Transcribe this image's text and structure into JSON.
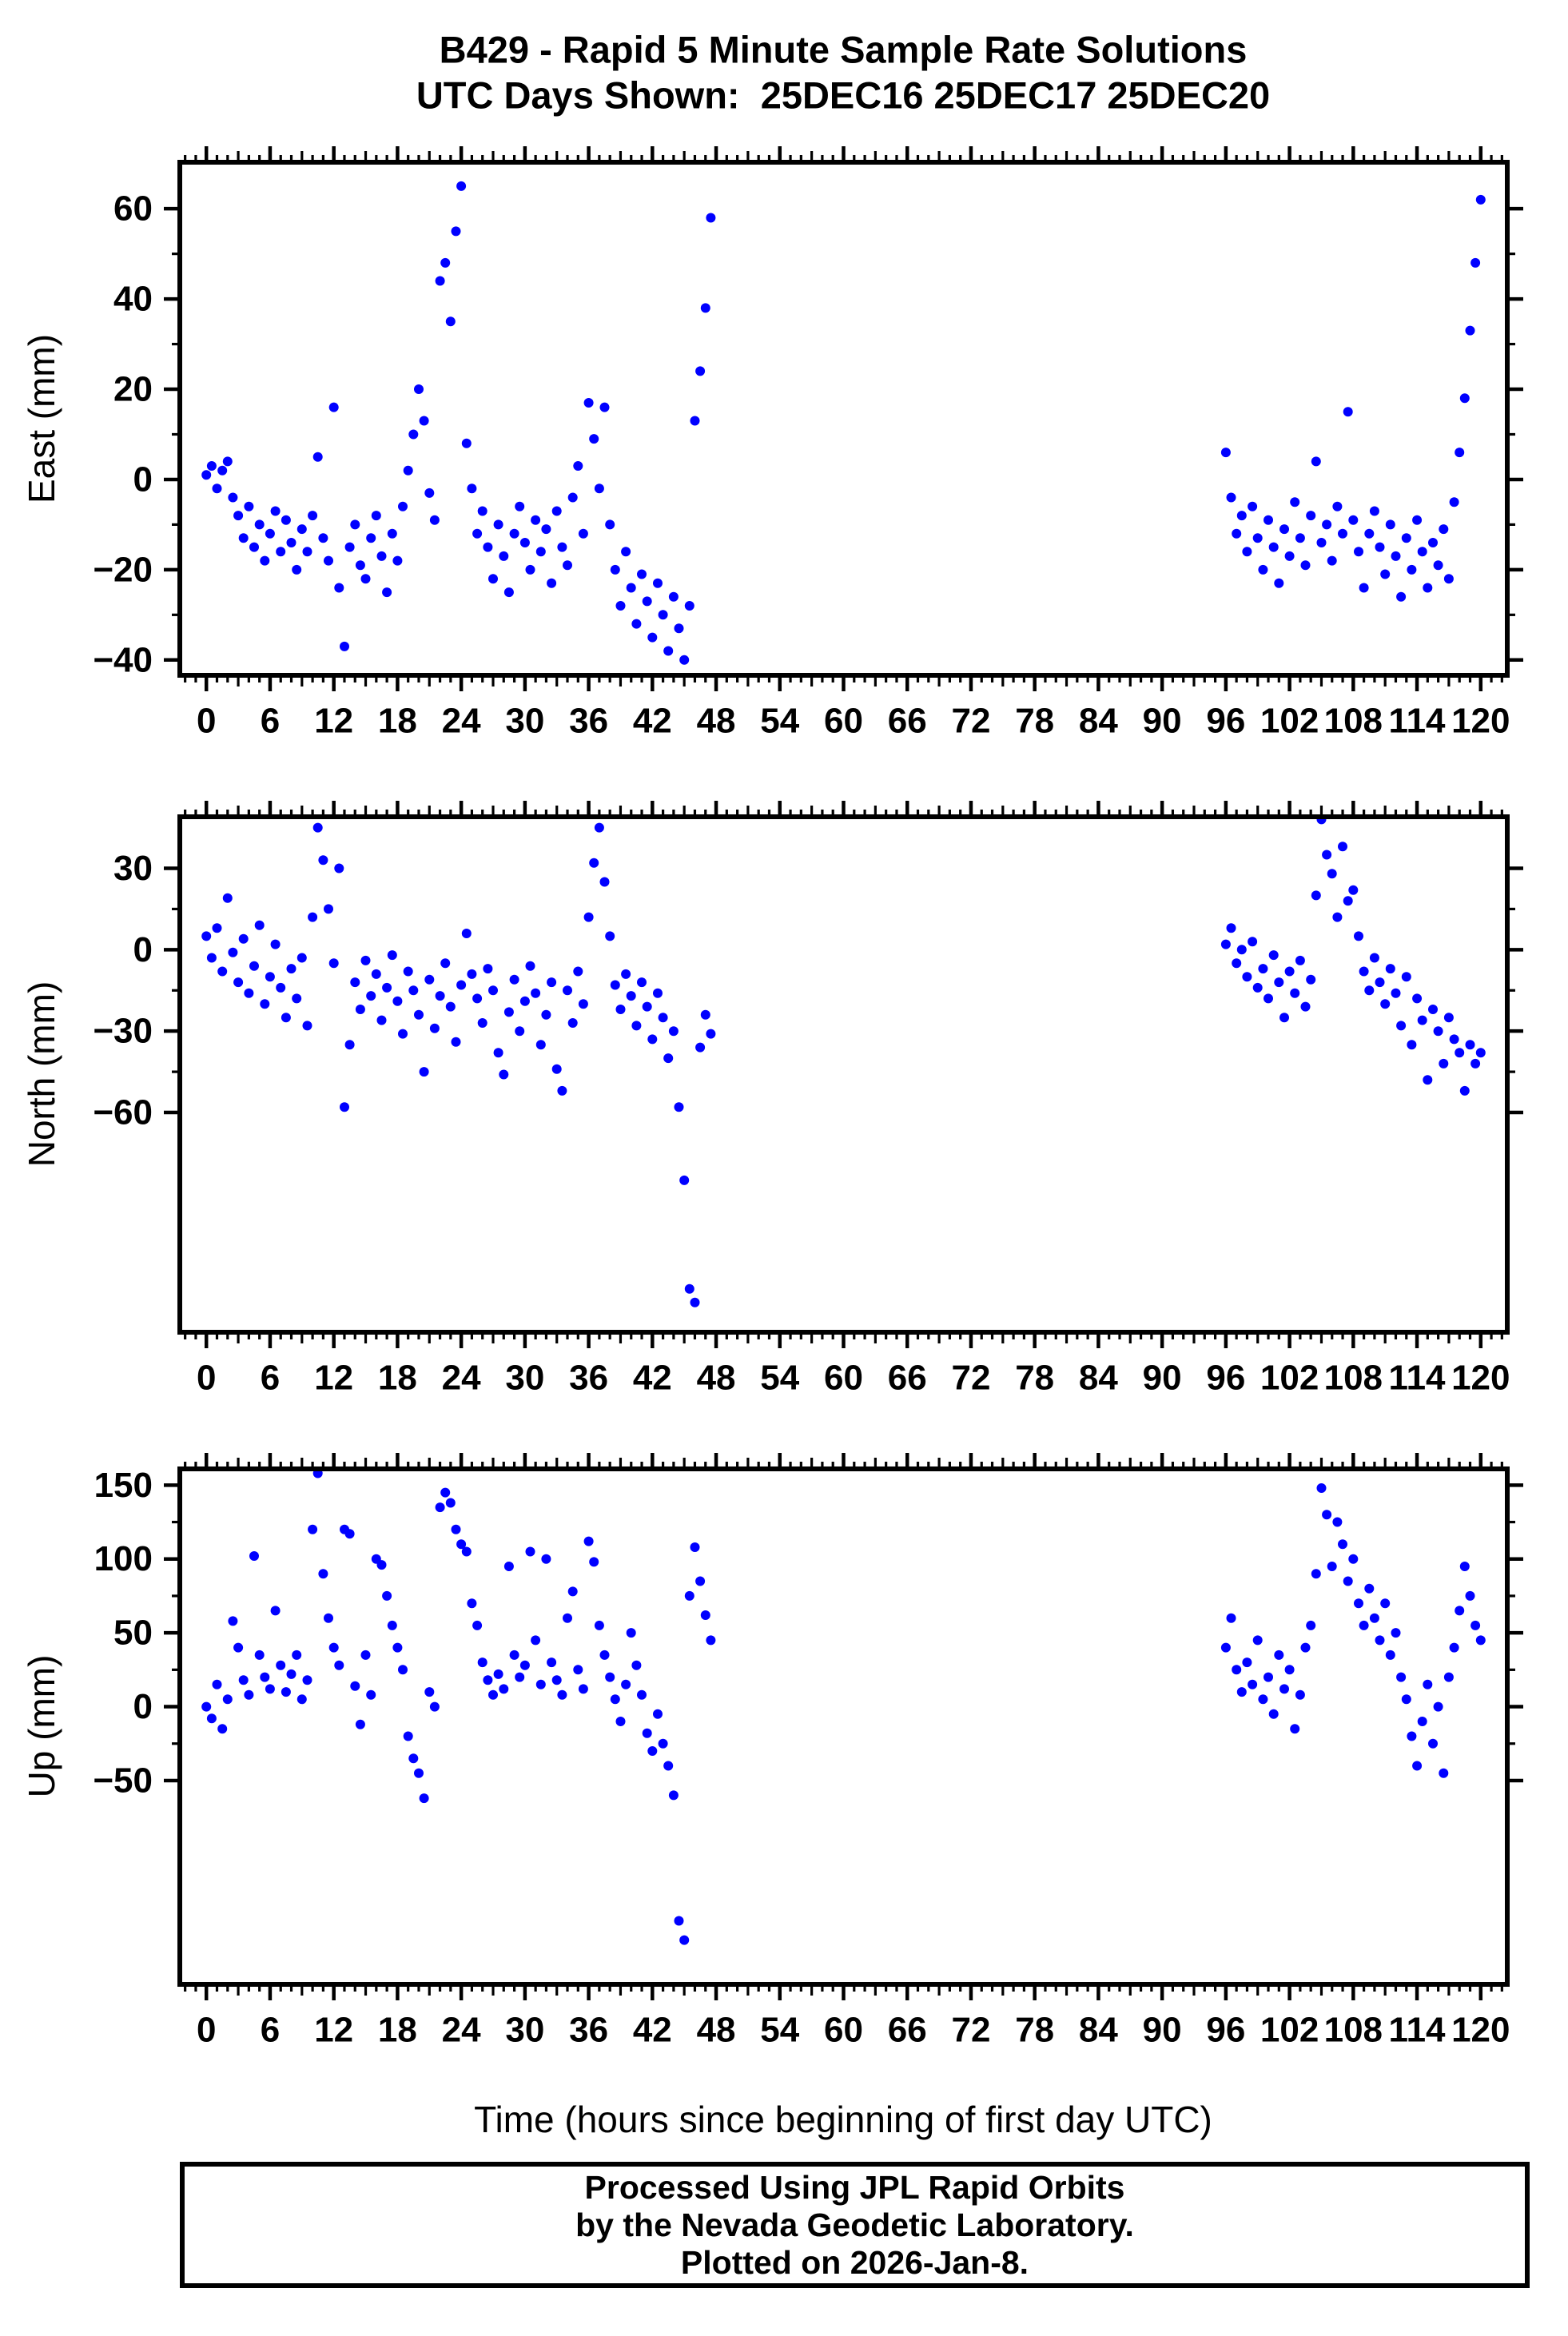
{
  "title": {
    "line1": "B429 - Rapid 5 Minute Sample Rate Solutions",
    "line2": "UTC Days Shown:  25DEC16 25DEC17 25DEC20"
  },
  "footer_box": {
    "line1": "Processed Using JPL Rapid Orbits",
    "line2": "by the Nevada Geodetic Laboratory.",
    "line3": "Plotted on 2026-Jan-8."
  },
  "chart_data": {
    "type": "scatter",
    "marker_color": "#0000ff",
    "axis_color": "#000000",
    "background_color": "#ffffff",
    "xlabel": "Time (hours since beginning of first day UTC)",
    "x_range": [
      -2.5,
      122.5
    ],
    "x_ticks": {
      "label_start": 0,
      "label_end": 120,
      "label_step": 6,
      "medium_step": 3,
      "minor_step": 1
    },
    "grid": "off",
    "legend": "none",
    "panels": [
      {
        "id": "east",
        "ylabel": "East (mm)",
        "y_range": [
          -43.4,
          70.3
        ],
        "y_label_min": -40,
        "y_label_max": 60,
        "y_label_step": 20,
        "y_minor_step": 10,
        "segments": [
          {
            "x0": 0,
            "dx": 0.5,
            "y": [
              1,
              3,
              -2,
              2,
              4,
              -4,
              -8,
              -13,
              -6,
              -15,
              -10,
              -18,
              -12,
              -7,
              -16,
              -9,
              -14,
              -20,
              -11,
              -16,
              -8,
              5,
              -13,
              -18,
              16,
              -24,
              -37,
              -15,
              -10,
              -19,
              -22,
              -13,
              -8,
              -17,
              -25,
              -12,
              -18,
              -6,
              2,
              10,
              20,
              13,
              -3,
              -9,
              44,
              48,
              35,
              55,
              65,
              8,
              -2,
              -12,
              -7,
              -15,
              -22,
              -10,
              -17,
              -25,
              -12,
              -6,
              -14,
              -20,
              -9,
              -16,
              -11,
              -23,
              -7,
              -15,
              -19,
              -4,
              3,
              -12,
              17,
              9,
              -2,
              16,
              -10,
              -20,
              -28,
              -16,
              -24,
              -32,
              -21,
              -27,
              -35,
              -23,
              -30,
              -38,
              -26,
              -33,
              -40,
              -28,
              13,
              24,
              38,
              58
            ]
          },
          {
            "x0": 96,
            "dx": 0.5,
            "y": [
              6,
              -4,
              -12,
              -8,
              -16,
              -6,
              -13,
              -20,
              -9,
              -15,
              -23,
              -11,
              -17,
              -5,
              -13,
              -19,
              -8,
              4,
              -14,
              -10,
              -18,
              -6,
              -12,
              15,
              -9,
              -16,
              -24,
              -12,
              -7,
              -15,
              -21,
              -10,
              -17,
              -26,
              -13,
              -20,
              -9,
              -16,
              -24,
              -14,
              -19,
              -11,
              -22,
              -5,
              6,
              18,
              33,
              48,
              62
            ]
          }
        ]
      },
      {
        "id": "north",
        "ylabel": "North (mm)",
        "y_range": [
          -141,
          49
        ],
        "y_label_min": -60,
        "y_label_max": 30,
        "y_label_step": 30,
        "y_minor_step": 15,
        "segments": [
          {
            "x0": 0,
            "dx": 0.5,
            "y": [
              5,
              -3,
              8,
              -8,
              19,
              -1,
              -12,
              4,
              -16,
              -6,
              9,
              -20,
              -10,
              2,
              -14,
              -25,
              -7,
              -18,
              -3,
              -28,
              12,
              45,
              33,
              15,
              -5,
              30,
              -58,
              -35,
              -12,
              -22,
              -4,
              -17,
              -9,
              -26,
              -14,
              -2,
              -19,
              -31,
              -8,
              -15,
              -24,
              -45,
              -11,
              -29,
              -17,
              -5,
              -21,
              -34,
              -13,
              6,
              -9,
              -18,
              -27,
              -7,
              -15,
              -38,
              -46,
              -23,
              -11,
              -30,
              -19,
              -6,
              -16,
              -35,
              -24,
              -12,
              -44,
              -52,
              -15,
              -27,
              -8,
              -20,
              12,
              32,
              45,
              25,
              5,
              -13,
              -22,
              -9,
              -17,
              -28,
              -12,
              -21,
              -33,
              -16,
              -25,
              -40,
              -30,
              -58,
              -85,
              -125,
              -130,
              -36,
              -24,
              -31
            ]
          },
          {
            "x0": 96,
            "dx": 0.5,
            "y": [
              2,
              8,
              -5,
              0,
              -10,
              3,
              -14,
              -7,
              -18,
              -2,
              -12,
              -25,
              -8,
              -16,
              -4,
              -21,
              -11,
              20,
              48,
              35,
              28,
              12,
              38,
              18,
              22,
              5,
              -8,
              -15,
              -3,
              -12,
              -20,
              -7,
              -16,
              -28,
              -10,
              -35,
              -18,
              -26,
              -48,
              -22,
              -30,
              -42,
              -25,
              -33,
              -38,
              -52,
              -35,
              -42,
              -38
            ]
          }
        ]
      },
      {
        "id": "up",
        "ylabel": "Up (mm)",
        "y_range": [
          -188,
          161
        ],
        "y_label_min": -50,
        "y_label_max": 150,
        "y_label_step": 50,
        "y_minor_step": 25,
        "segments": [
          {
            "x0": 0,
            "dx": 0.5,
            "y": [
              0,
              -8,
              15,
              -15,
              5,
              58,
              40,
              18,
              8,
              102,
              35,
              20,
              12,
              65,
              28,
              10,
              22,
              35,
              5,
              18,
              120,
              158,
              90,
              60,
              40,
              28,
              120,
              117,
              14,
              -12,
              35,
              8,
              100,
              96,
              75,
              55,
              40,
              25,
              -20,
              -35,
              -45,
              -62,
              10,
              0,
              135,
              145,
              138,
              120,
              110,
              105,
              70,
              55,
              30,
              18,
              8,
              22,
              12,
              95,
              35,
              20,
              28,
              105,
              45,
              15,
              100,
              30,
              18,
              8,
              60,
              78,
              25,
              12,
              112,
              98,
              55,
              35,
              20,
              5,
              -10,
              15,
              50,
              28,
              8,
              -18,
              -30,
              -5,
              -25,
              -40,
              -60,
              -145,
              -158,
              75,
              108,
              85,
              62,
              45
            ]
          },
          {
            "x0": 96,
            "dx": 0.5,
            "y": [
              40,
              60,
              25,
              10,
              30,
              15,
              45,
              5,
              20,
              -5,
              35,
              12,
              25,
              -15,
              8,
              40,
              55,
              90,
              148,
              130,
              95,
              125,
              110,
              85,
              100,
              70,
              55,
              80,
              60,
              45,
              70,
              35,
              50,
              20,
              5,
              -20,
              -40,
              -10,
              15,
              -25,
              0,
              -45,
              20,
              40,
              65,
              95,
              75,
              55,
              45
            ]
          }
        ]
      }
    ]
  }
}
